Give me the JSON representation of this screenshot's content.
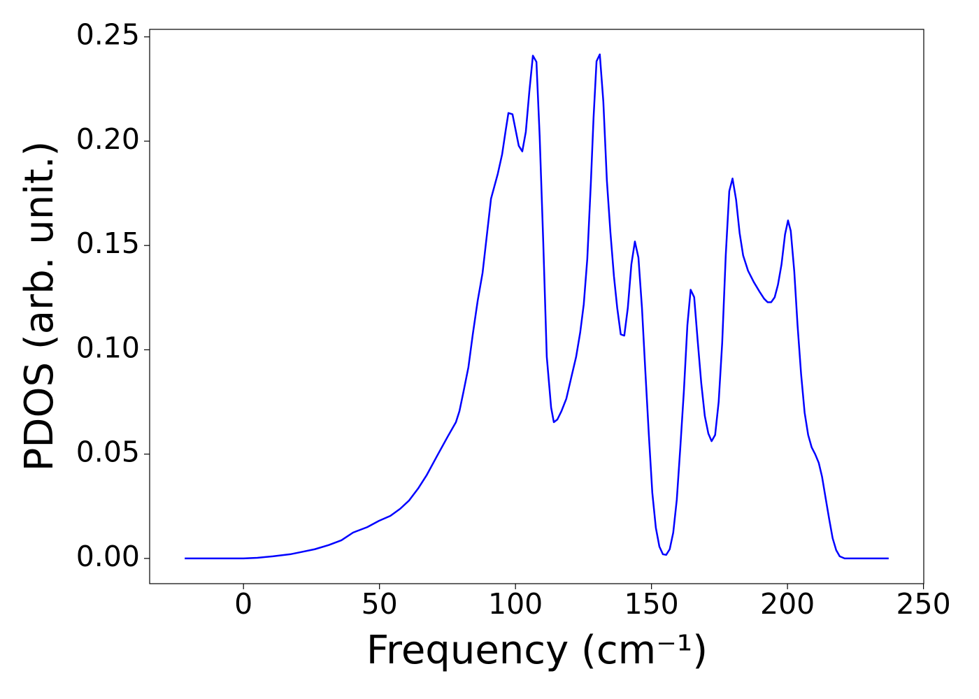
{
  "chart_data": {
    "type": "line",
    "xlabel": "Frequency (cm⁻¹)",
    "ylabel": "PDOS (arb. unit.)",
    "xlim": [
      -34.5,
      250.1
    ],
    "ylim": [
      -0.0121,
      0.2536
    ],
    "xticks": [
      0,
      50,
      100,
      150,
      200,
      250
    ],
    "yticks": [
      {
        "value": 0,
        "label": "0.00"
      },
      {
        "value": 0.05,
        "label": "0.05"
      },
      {
        "value": 0.1,
        "label": "0.10"
      },
      {
        "value": 0.15,
        "label": "0.15"
      },
      {
        "value": 0.2,
        "label": "0.20"
      },
      {
        "value": 0.25,
        "label": "0.25"
      }
    ],
    "x": [
      -21.6,
      0,
      5.1,
      10.8,
      17.2,
      21,
      26.2,
      31.3,
      36,
      40.3,
      45.5,
      49.8,
      54,
      57.6,
      60.9,
      64.2,
      67.3,
      71.2,
      75,
      78.1,
      79.4,
      80.9,
      82.7,
      84.3,
      86.1,
      87.9,
      91,
      93.5,
      95.1,
      96.4,
      97.4,
      98.9,
      101.2,
      102.5,
      103.8,
      105.1,
      106.4,
      107.7,
      108.9,
      110.2,
      111.5,
      113.1,
      114.1,
      115.4,
      116.9,
      118.7,
      120.5,
      122.3,
      123.8,
      125.1,
      126.4,
      127.7,
      128.7,
      129.8,
      131,
      132.3,
      133.6,
      134.9,
      136.2,
      137.4,
      138.7,
      140,
      141.3,
      142.6,
      143.9,
      145.2,
      146.5,
      147.7,
      149,
      150.3,
      151.6,
      152.9,
      154.2,
      155.4,
      156.7,
      158,
      159.3,
      160.6,
      161.9,
      163.2,
      164.4,
      165.7,
      167,
      168.3,
      169.6,
      170.9,
      172.1,
      173.4,
      174.7,
      176,
      177.3,
      178.6,
      179.8,
      181.1,
      182.4,
      183.7,
      185.5,
      187.6,
      189.9,
      191.4,
      192.7,
      194,
      195.3,
      196.5,
      197.8,
      199.1,
      200.2,
      201.2,
      202.5,
      203.7,
      205,
      206.3,
      207.6,
      208.9,
      210.2,
      211.5,
      212.7,
      214,
      215.3,
      216.6,
      217.9,
      219.2,
      221,
      237.2
    ],
    "series": [
      {
        "color": "#0000ff",
        "values": [
          0,
          0,
          0.0003,
          0.001,
          0.002,
          0.003,
          0.0044,
          0.0064,
          0.0087,
          0.0124,
          0.015,
          0.018,
          0.0204,
          0.0238,
          0.0278,
          0.0335,
          0.0398,
          0.0492,
          0.0582,
          0.0653,
          0.0706,
          0.08,
          0.0917,
          0.1074,
          0.1235,
          0.1369,
          0.1724,
          0.1844,
          0.1938,
          0.2052,
          0.2135,
          0.2129,
          0.1978,
          0.1951,
          0.2045,
          0.2239,
          0.241,
          0.238,
          0.2021,
          0.1519,
          0.0967,
          0.0723,
          0.0653,
          0.0666,
          0.0706,
          0.0766,
          0.0867,
          0.0967,
          0.1084,
          0.1218,
          0.1436,
          0.1797,
          0.2112,
          0.2383,
          0.2416,
          0.2189,
          0.1811,
          0.1563,
          0.1352,
          0.1201,
          0.1074,
          0.1068,
          0.1201,
          0.1409,
          0.1519,
          0.1442,
          0.1201,
          0.0907,
          0.0599,
          0.0315,
          0.0147,
          0.0057,
          0.002,
          0.0017,
          0.0044,
          0.0124,
          0.0281,
          0.0532,
          0.08,
          0.1118,
          0.1288,
          0.1252,
          0.1041,
          0.084,
          0.0683,
          0.0599,
          0.0562,
          0.0592,
          0.075,
          0.1034,
          0.1452,
          0.176,
          0.1821,
          0.172,
          0.156,
          0.1452,
          0.1379,
          0.1325,
          0.1275,
          0.1245,
          0.1228,
          0.1228,
          0.1252,
          0.1312,
          0.1409,
          0.1553,
          0.162,
          0.157,
          0.1375,
          0.1118,
          0.0884,
          0.0699,
          0.0592,
          0.0532,
          0.0499,
          0.0458,
          0.0392,
          0.0291,
          0.0191,
          0.0097,
          0.004,
          0.001,
          0,
          0
        ]
      }
    ]
  }
}
